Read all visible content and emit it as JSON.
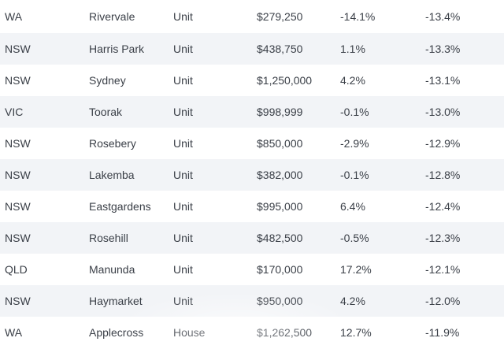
{
  "rows": [
    {
      "state": "WA",
      "suburb": "Rivervale",
      "type": "Unit",
      "price": "$279,250",
      "change1": "-14.1%",
      "change2": "-13.4%"
    },
    {
      "state": "NSW",
      "suburb": "Harris Park",
      "type": "Unit",
      "price": "$438,750",
      "change1": "1.1%",
      "change2": "-13.3%"
    },
    {
      "state": "NSW",
      "suburb": "Sydney",
      "type": "Unit",
      "price": "$1,250,000",
      "change1": "4.2%",
      "change2": "-13.1%"
    },
    {
      "state": "VIC",
      "suburb": "Toorak",
      "type": "Unit",
      "price": "$998,999",
      "change1": "-0.1%",
      "change2": "-13.0%"
    },
    {
      "state": "NSW",
      "suburb": "Rosebery",
      "type": "Unit",
      "price": "$850,000",
      "change1": "-2.9%",
      "change2": "-12.9%"
    },
    {
      "state": "NSW",
      "suburb": "Lakemba",
      "type": "Unit",
      "price": "$382,000",
      "change1": "-0.1%",
      "change2": "-12.8%"
    },
    {
      "state": "NSW",
      "suburb": "Eastgardens",
      "type": "Unit",
      "price": "$995,000",
      "change1": "6.4%",
      "change2": "-12.4%"
    },
    {
      "state": "NSW",
      "suburb": "Rosehill",
      "type": "Unit",
      "price": "$482,500",
      "change1": "-0.5%",
      "change2": "-12.3%"
    },
    {
      "state": "QLD",
      "suburb": "Manunda",
      "type": "Unit",
      "price": "$170,000",
      "change1": "17.2%",
      "change2": "-12.1%"
    },
    {
      "state": "NSW",
      "suburb": "Haymarket",
      "type": "Unit",
      "price": "$950,000",
      "change1": "4.2%",
      "change2": "-12.0%"
    },
    {
      "state": "WA",
      "suburb": "Applecross",
      "type": "House",
      "price": "$1,262,500",
      "change1": "12.7%",
      "change2": "-11.9%"
    }
  ]
}
